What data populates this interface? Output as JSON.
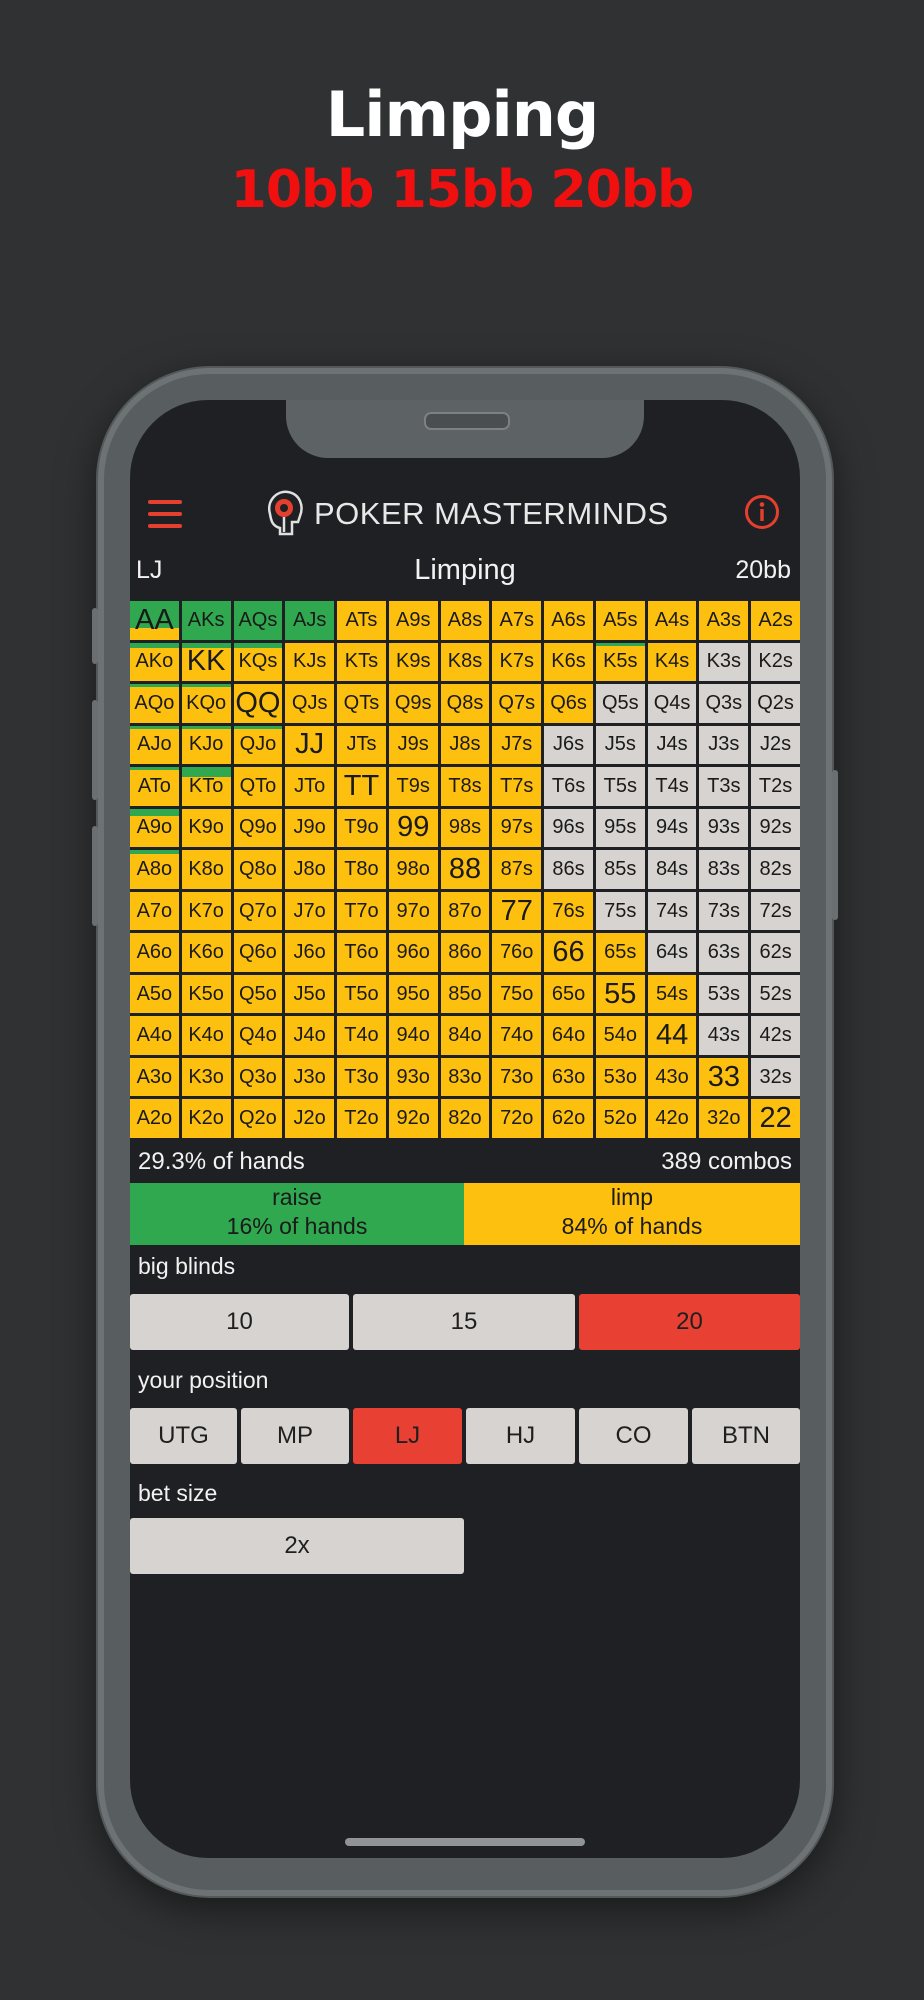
{
  "promo": {
    "title": "Limping",
    "subtitle": "10bb 15bb 20bb"
  },
  "app": {
    "brand": "POKER MASTERMINDS"
  },
  "header": {
    "position": "LJ",
    "title": "Limping",
    "stack": "20bb"
  },
  "colors": {
    "raise": "#2fa84f",
    "limp": "#fec00f",
    "fold": "#d7d3d0",
    "active": "#e84134",
    "accent": "#e5402f"
  },
  "grid": {
    "rows": [
      [
        "AA",
        "AKs",
        "AQs",
        "AJs",
        "ATs",
        "A9s",
        "A8s",
        "A7s",
        "A6s",
        "A5s",
        "A4s",
        "A3s",
        "A2s"
      ],
      [
        "AKo",
        "KK",
        "KQs",
        "KJs",
        "KTs",
        "K9s",
        "K8s",
        "K7s",
        "K6s",
        "K5s",
        "K4s",
        "K3s",
        "K2s"
      ],
      [
        "AQo",
        "KQo",
        "QQ",
        "QJs",
        "QTs",
        "Q9s",
        "Q8s",
        "Q7s",
        "Q6s",
        "Q5s",
        "Q4s",
        "Q3s",
        "Q2s"
      ],
      [
        "AJo",
        "KJo",
        "QJo",
        "JJ",
        "JTs",
        "J9s",
        "J8s",
        "J7s",
        "J6s",
        "J5s",
        "J4s",
        "J3s",
        "J2s"
      ],
      [
        "ATo",
        "KTo",
        "QTo",
        "JTo",
        "TT",
        "T9s",
        "T8s",
        "T7s",
        "T6s",
        "T5s",
        "T4s",
        "T3s",
        "T2s"
      ],
      [
        "A9o",
        "K9o",
        "Q9o",
        "J9o",
        "T9o",
        "99",
        "98s",
        "97s",
        "96s",
        "95s",
        "94s",
        "93s",
        "92s"
      ],
      [
        "A8o",
        "K8o",
        "Q8o",
        "J8o",
        "T8o",
        "98o",
        "88",
        "87s",
        "86s",
        "85s",
        "84s",
        "83s",
        "82s"
      ],
      [
        "A7o",
        "K7o",
        "Q7o",
        "J7o",
        "T7o",
        "97o",
        "87o",
        "77",
        "76s",
        "75s",
        "74s",
        "73s",
        "72s"
      ],
      [
        "A6o",
        "K6o",
        "Q6o",
        "J6o",
        "T6o",
        "96o",
        "86o",
        "76o",
        "66",
        "65s",
        "64s",
        "63s",
        "62s"
      ],
      [
        "A5o",
        "K5o",
        "Q5o",
        "J5o",
        "T5o",
        "95o",
        "85o",
        "75o",
        "65o",
        "55",
        "54s",
        "53s",
        "52s"
      ],
      [
        "A4o",
        "K4o",
        "Q4o",
        "J4o",
        "T4o",
        "94o",
        "84o",
        "74o",
        "64o",
        "54o",
        "44",
        "43s",
        "42s"
      ],
      [
        "A3o",
        "K3o",
        "Q3o",
        "J3o",
        "T3o",
        "93o",
        "83o",
        "73o",
        "63o",
        "53o",
        "43o",
        "33",
        "32s"
      ],
      [
        "A2o",
        "K2o",
        "Q2o",
        "J2o",
        "T2o",
        "92o",
        "82o",
        "72o",
        "62o",
        "52o",
        "42o",
        "32o",
        "22"
      ]
    ],
    "limp_counts": [
      13,
      11,
      9,
      8,
      8,
      8,
      8,
      9,
      10,
      11,
      11,
      12,
      13
    ],
    "raise_fraction": {
      "AA": 0.7,
      "AKs": 1,
      "AQs": 1,
      "AJs": 1,
      "AKo": 0.15,
      "KK": 0.15,
      "KQs": 0.15,
      "K5s": 0.1,
      "AQo": 0.05,
      "KQo": 0.05,
      "AJo": 0.05,
      "KJo": 0.05,
      "QJo": 0.05,
      "ATo": 0.05,
      "KTo": 0.25,
      "A9o": 0.2,
      "A8o": 0.1
    }
  },
  "stats": {
    "percent": "29.3% of hands",
    "combos": "389 combos"
  },
  "legend": {
    "raise": {
      "label": "raise",
      "percent": "16% of hands"
    },
    "limp": {
      "label": "limp",
      "percent": "84% of hands"
    }
  },
  "big_blinds": {
    "label": "big blinds",
    "options": [
      "10",
      "15",
      "20"
    ],
    "selected": "20"
  },
  "position": {
    "label": "your position",
    "options": [
      "UTG",
      "MP",
      "LJ",
      "HJ",
      "CO",
      "BTN"
    ],
    "selected": "LJ"
  },
  "bet_size": {
    "label": "bet size",
    "options": [
      "2x"
    ],
    "selected": "2x"
  }
}
